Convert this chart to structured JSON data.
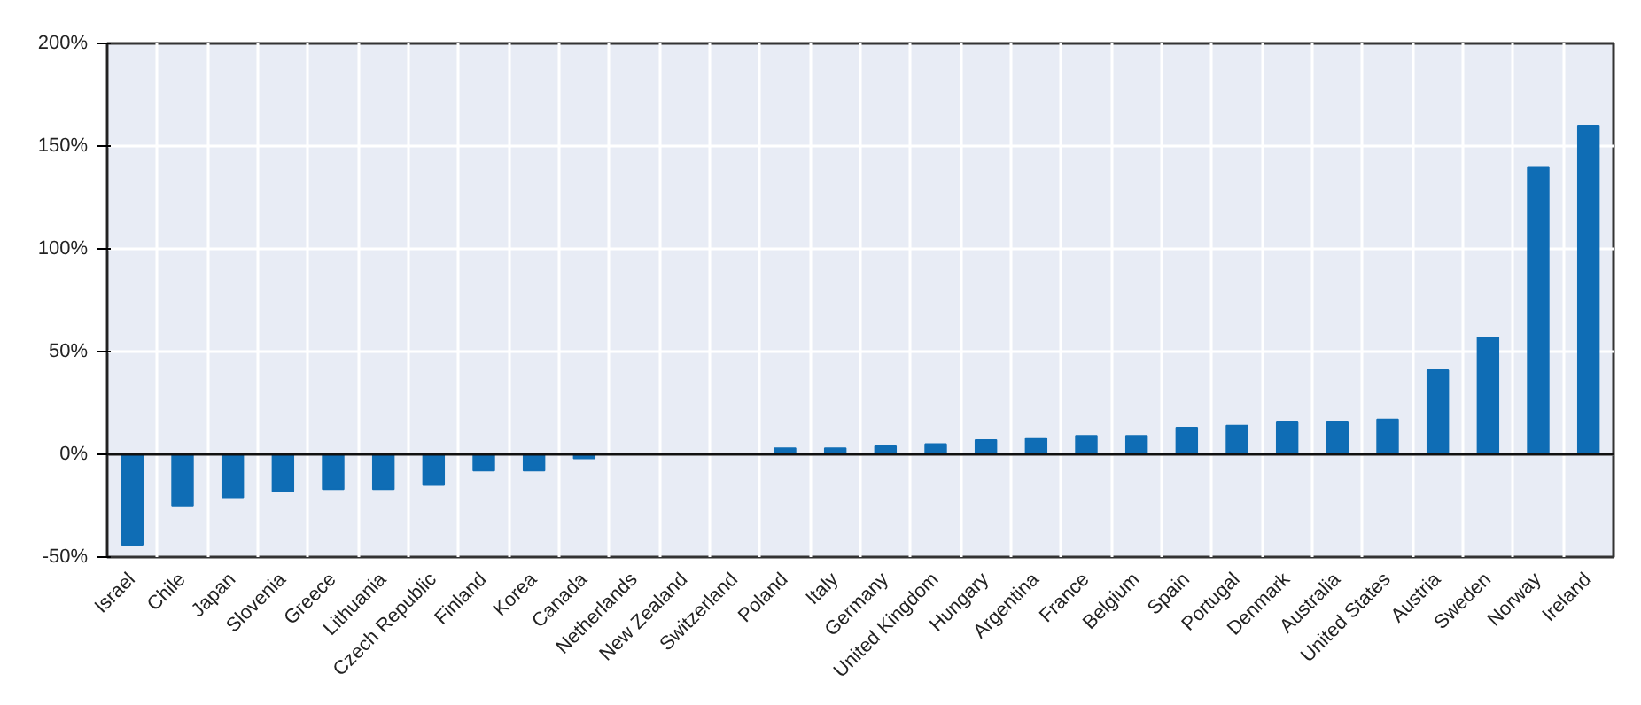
{
  "chart_data": {
    "type": "bar",
    "categories": [
      "Israel",
      "Chile",
      "Japan",
      "Slovenia",
      "Greece",
      "Lithuania",
      "Czech Republic",
      "Finland",
      "Korea",
      "Canada",
      "Netherlands",
      "New Zealand",
      "Switzerland",
      "Poland",
      "Italy",
      "Germany",
      "United Kingdom",
      "Hungary",
      "Argentina",
      "France",
      "Belgium",
      "Spain",
      "Portugal",
      "Denmark",
      "Australia",
      "United States",
      "Austria",
      "Sweden",
      "Norway",
      "Ireland"
    ],
    "values": [
      -44,
      -25,
      -21,
      -18,
      -17,
      -17,
      -15,
      -8,
      -8,
      -2,
      0,
      0,
      0,
      3,
      3,
      4,
      5,
      7,
      8,
      9,
      9,
      13,
      14,
      16,
      16,
      17,
      41,
      57,
      140,
      160
    ],
    "color": "#0f6db5",
    "ylim": [
      -50,
      200
    ],
    "yticks": [
      {
        "value": -50,
        "label": "-50%"
      },
      {
        "value": 0,
        "label": "0%"
      },
      {
        "value": 50,
        "label": "50%"
      },
      {
        "value": 100,
        "label": "100%"
      },
      {
        "value": 150,
        "label": "150%"
      },
      {
        "value": 200,
        "label": "200%"
      }
    ],
    "grid": true
  }
}
